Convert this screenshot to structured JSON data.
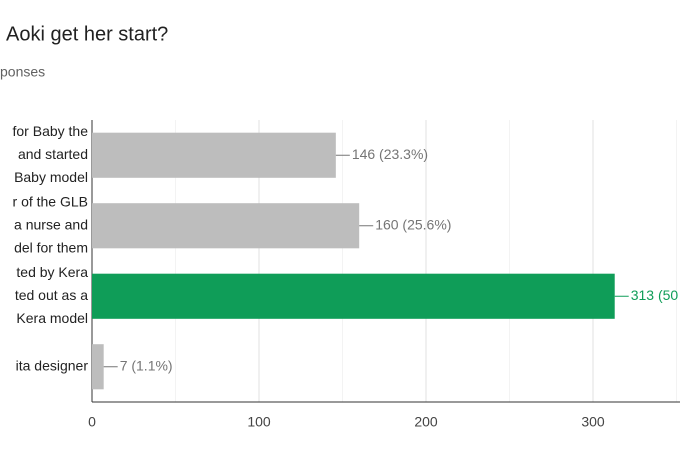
{
  "chart_data": {
    "type": "hbar",
    "title": "Aoki get her start?",
    "subtitle": "ponses",
    "categories": [
      [
        "for Baby the",
        "and started",
        "Baby model"
      ],
      [
        "r of the GLB",
        "a nurse and",
        "del for them"
      ],
      [
        "ted by Kera",
        "ted out as a",
        "Kera model"
      ],
      [
        "ita designer"
      ]
    ],
    "values": [
      146,
      160,
      313,
      7
    ],
    "value_labels": [
      "146 (23.3%)",
      "160 (25.6%)",
      "313 (50",
      "7 (1.1%)"
    ],
    "colors": [
      "#bdbdbd",
      "#bdbdbd",
      "#0f9d58",
      "#bdbdbd"
    ],
    "label_colors": [
      "#757575",
      "#757575",
      "#0f9d58",
      "#757575"
    ],
    "xlim": [
      0,
      352
    ],
    "xticks": [
      0,
      100,
      200,
      300
    ],
    "minor_xticks": [
      50,
      150,
      250,
      350
    ],
    "grid": true
  }
}
